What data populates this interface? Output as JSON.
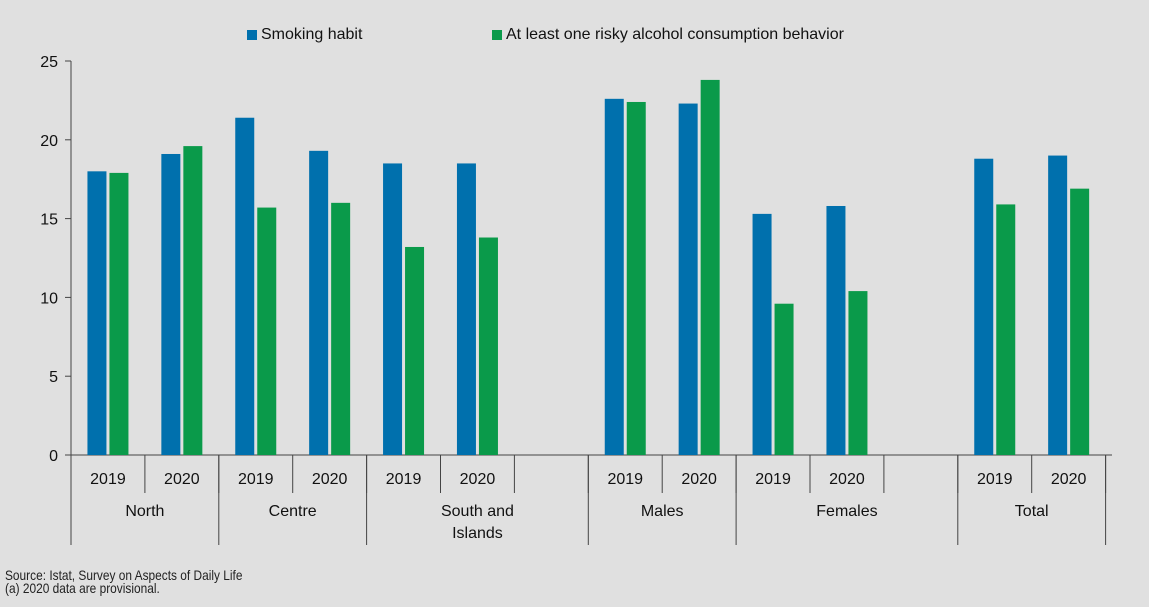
{
  "chart_data": {
    "type": "bar",
    "ylim": [
      0,
      25
    ],
    "yticks": [
      0,
      5,
      10,
      15,
      20,
      25
    ],
    "grid": false,
    "legend_position": "top",
    "series": [
      {
        "name": "Smoking habit",
        "color": "#0070ad"
      },
      {
        "name": "At least one risky alcohol consumption behavior",
        "color": "#0a9a4a"
      }
    ],
    "groups": [
      {
        "label": "North",
        "categories": [
          "2019",
          "2020"
        ],
        "values": [
          [
            18.0,
            17.9
          ],
          [
            19.1,
            19.6
          ]
        ]
      },
      {
        "label": "Centre",
        "categories": [
          "2019",
          "2020"
        ],
        "values": [
          [
            21.4,
            15.7
          ],
          [
            19.3,
            16.0
          ]
        ]
      },
      {
        "label": "South and Islands",
        "categories": [
          "2019",
          "2020"
        ],
        "values": [
          [
            18.5,
            13.2
          ],
          [
            18.5,
            13.8
          ]
        ]
      },
      {
        "label": "Males",
        "categories": [
          "2019",
          "2020"
        ],
        "values": [
          [
            22.6,
            22.4
          ],
          [
            22.3,
            23.8
          ]
        ]
      },
      {
        "label": "Females",
        "categories": [
          "2019",
          "2020"
        ],
        "values": [
          [
            15.3,
            9.6
          ],
          [
            15.8,
            10.4
          ]
        ]
      },
      {
        "label": "Total",
        "categories": [
          "2019",
          "2020"
        ],
        "values": [
          [
            18.8,
            15.9
          ],
          [
            19.0,
            16.9
          ]
        ]
      }
    ]
  },
  "notes": {
    "source": "Source: Istat, Survey on Aspects of Daily Life",
    "provisional": "(a) 2020 data are provisional."
  }
}
